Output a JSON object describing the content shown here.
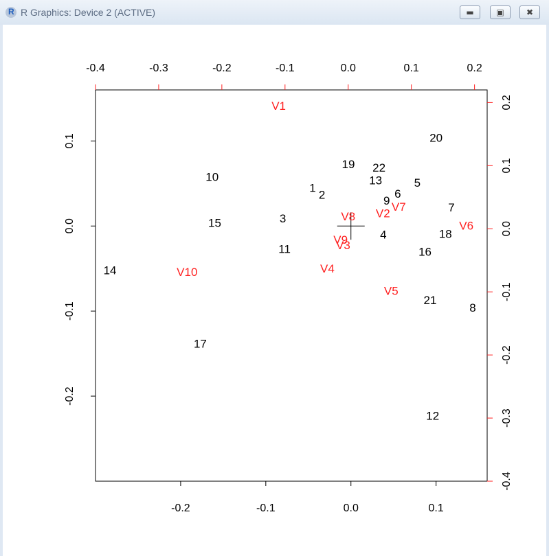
{
  "window": {
    "title": "R Graphics: Device 2 (ACTIVE)",
    "icon": "R",
    "buttons": [
      "minimize",
      "maximize",
      "close"
    ]
  },
  "chart_data": {
    "type": "scatter",
    "subtype": "biplot",
    "title": "",
    "xlabel": "",
    "ylabel": "",
    "observation_axes": {
      "xlim": [
        -0.3,
        0.16
      ],
      "ylim": [
        -0.3,
        0.16
      ],
      "x_ticks": [
        "-0.2",
        "-0.1",
        "0.0",
        "0.1"
      ],
      "y_ticks": [
        "-0.2",
        "-0.1",
        "0.0",
        "0.1"
      ]
    },
    "variable_axes": {
      "xlim": [
        -0.4,
        0.22
      ],
      "ylim": [
        -0.4,
        0.22
      ],
      "x_ticks": [
        "-0.4",
        "-0.3",
        "-0.2",
        "-0.1",
        "0.0",
        "0.1",
        "0.2"
      ],
      "y_ticks": [
        "-0.4",
        "-0.3",
        "-0.2",
        "-0.1",
        "0.0",
        "0.1",
        "0.2"
      ],
      "color": "#ff2020"
    },
    "observations": [
      {
        "label": "1",
        "x": -0.045,
        "y": 0.045
      },
      {
        "label": "2",
        "x": -0.034,
        "y": 0.037
      },
      {
        "label": "3",
        "x": -0.08,
        "y": 0.009
      },
      {
        "label": "4",
        "x": 0.038,
        "y": -0.01
      },
      {
        "label": "5",
        "x": 0.078,
        "y": 0.051
      },
      {
        "label": "6",
        "x": 0.055,
        "y": 0.038
      },
      {
        "label": "7",
        "x": 0.118,
        "y": 0.022
      },
      {
        "label": "8",
        "x": 0.143,
        "y": -0.096
      },
      {
        "label": "9",
        "x": 0.042,
        "y": 0.03
      },
      {
        "label": "10",
        "x": -0.163,
        "y": 0.058
      },
      {
        "label": "11",
        "x": -0.078,
        "y": -0.027
      },
      {
        "label": "12",
        "x": 0.096,
        "y": -0.223
      },
      {
        "label": "13",
        "x": 0.029,
        "y": 0.054
      },
      {
        "label": "14",
        "x": -0.283,
        "y": -0.052
      },
      {
        "label": "15",
        "x": -0.16,
        "y": 0.004
      },
      {
        "label": "16",
        "x": 0.087,
        "y": -0.03
      },
      {
        "label": "17",
        "x": -0.177,
        "y": -0.138
      },
      {
        "label": "18",
        "x": 0.111,
        "y": -0.009
      },
      {
        "label": "19",
        "x": -0.003,
        "y": 0.073
      },
      {
        "label": "20",
        "x": 0.1,
        "y": 0.104
      },
      {
        "label": "21",
        "x": 0.093,
        "y": -0.087
      },
      {
        "label": "22",
        "x": 0.033,
        "y": 0.069
      }
    ],
    "variables": [
      {
        "label": "V1",
        "x": -0.11,
        "y": 0.195
      },
      {
        "label": "V2",
        "x": 0.055,
        "y": 0.025
      },
      {
        "label": "V3",
        "x": -0.008,
        "y": -0.026
      },
      {
        "label": "V4",
        "x": -0.033,
        "y": -0.063
      },
      {
        "label": "V5",
        "x": 0.068,
        "y": -0.098
      },
      {
        "label": "V6",
        "x": 0.187,
        "y": 0.005
      },
      {
        "label": "V7",
        "x": 0.08,
        "y": 0.035
      },
      {
        "label": "V8",
        "x": 0.0,
        "y": 0.02
      },
      {
        "label": "V9",
        "x": -0.012,
        "y": -0.017
      },
      {
        "label": "V10",
        "x": -0.255,
        "y": -0.068
      }
    ],
    "origin_marker": "+",
    "colors": {
      "observations": "#000000",
      "variables": "#ff2020"
    }
  }
}
